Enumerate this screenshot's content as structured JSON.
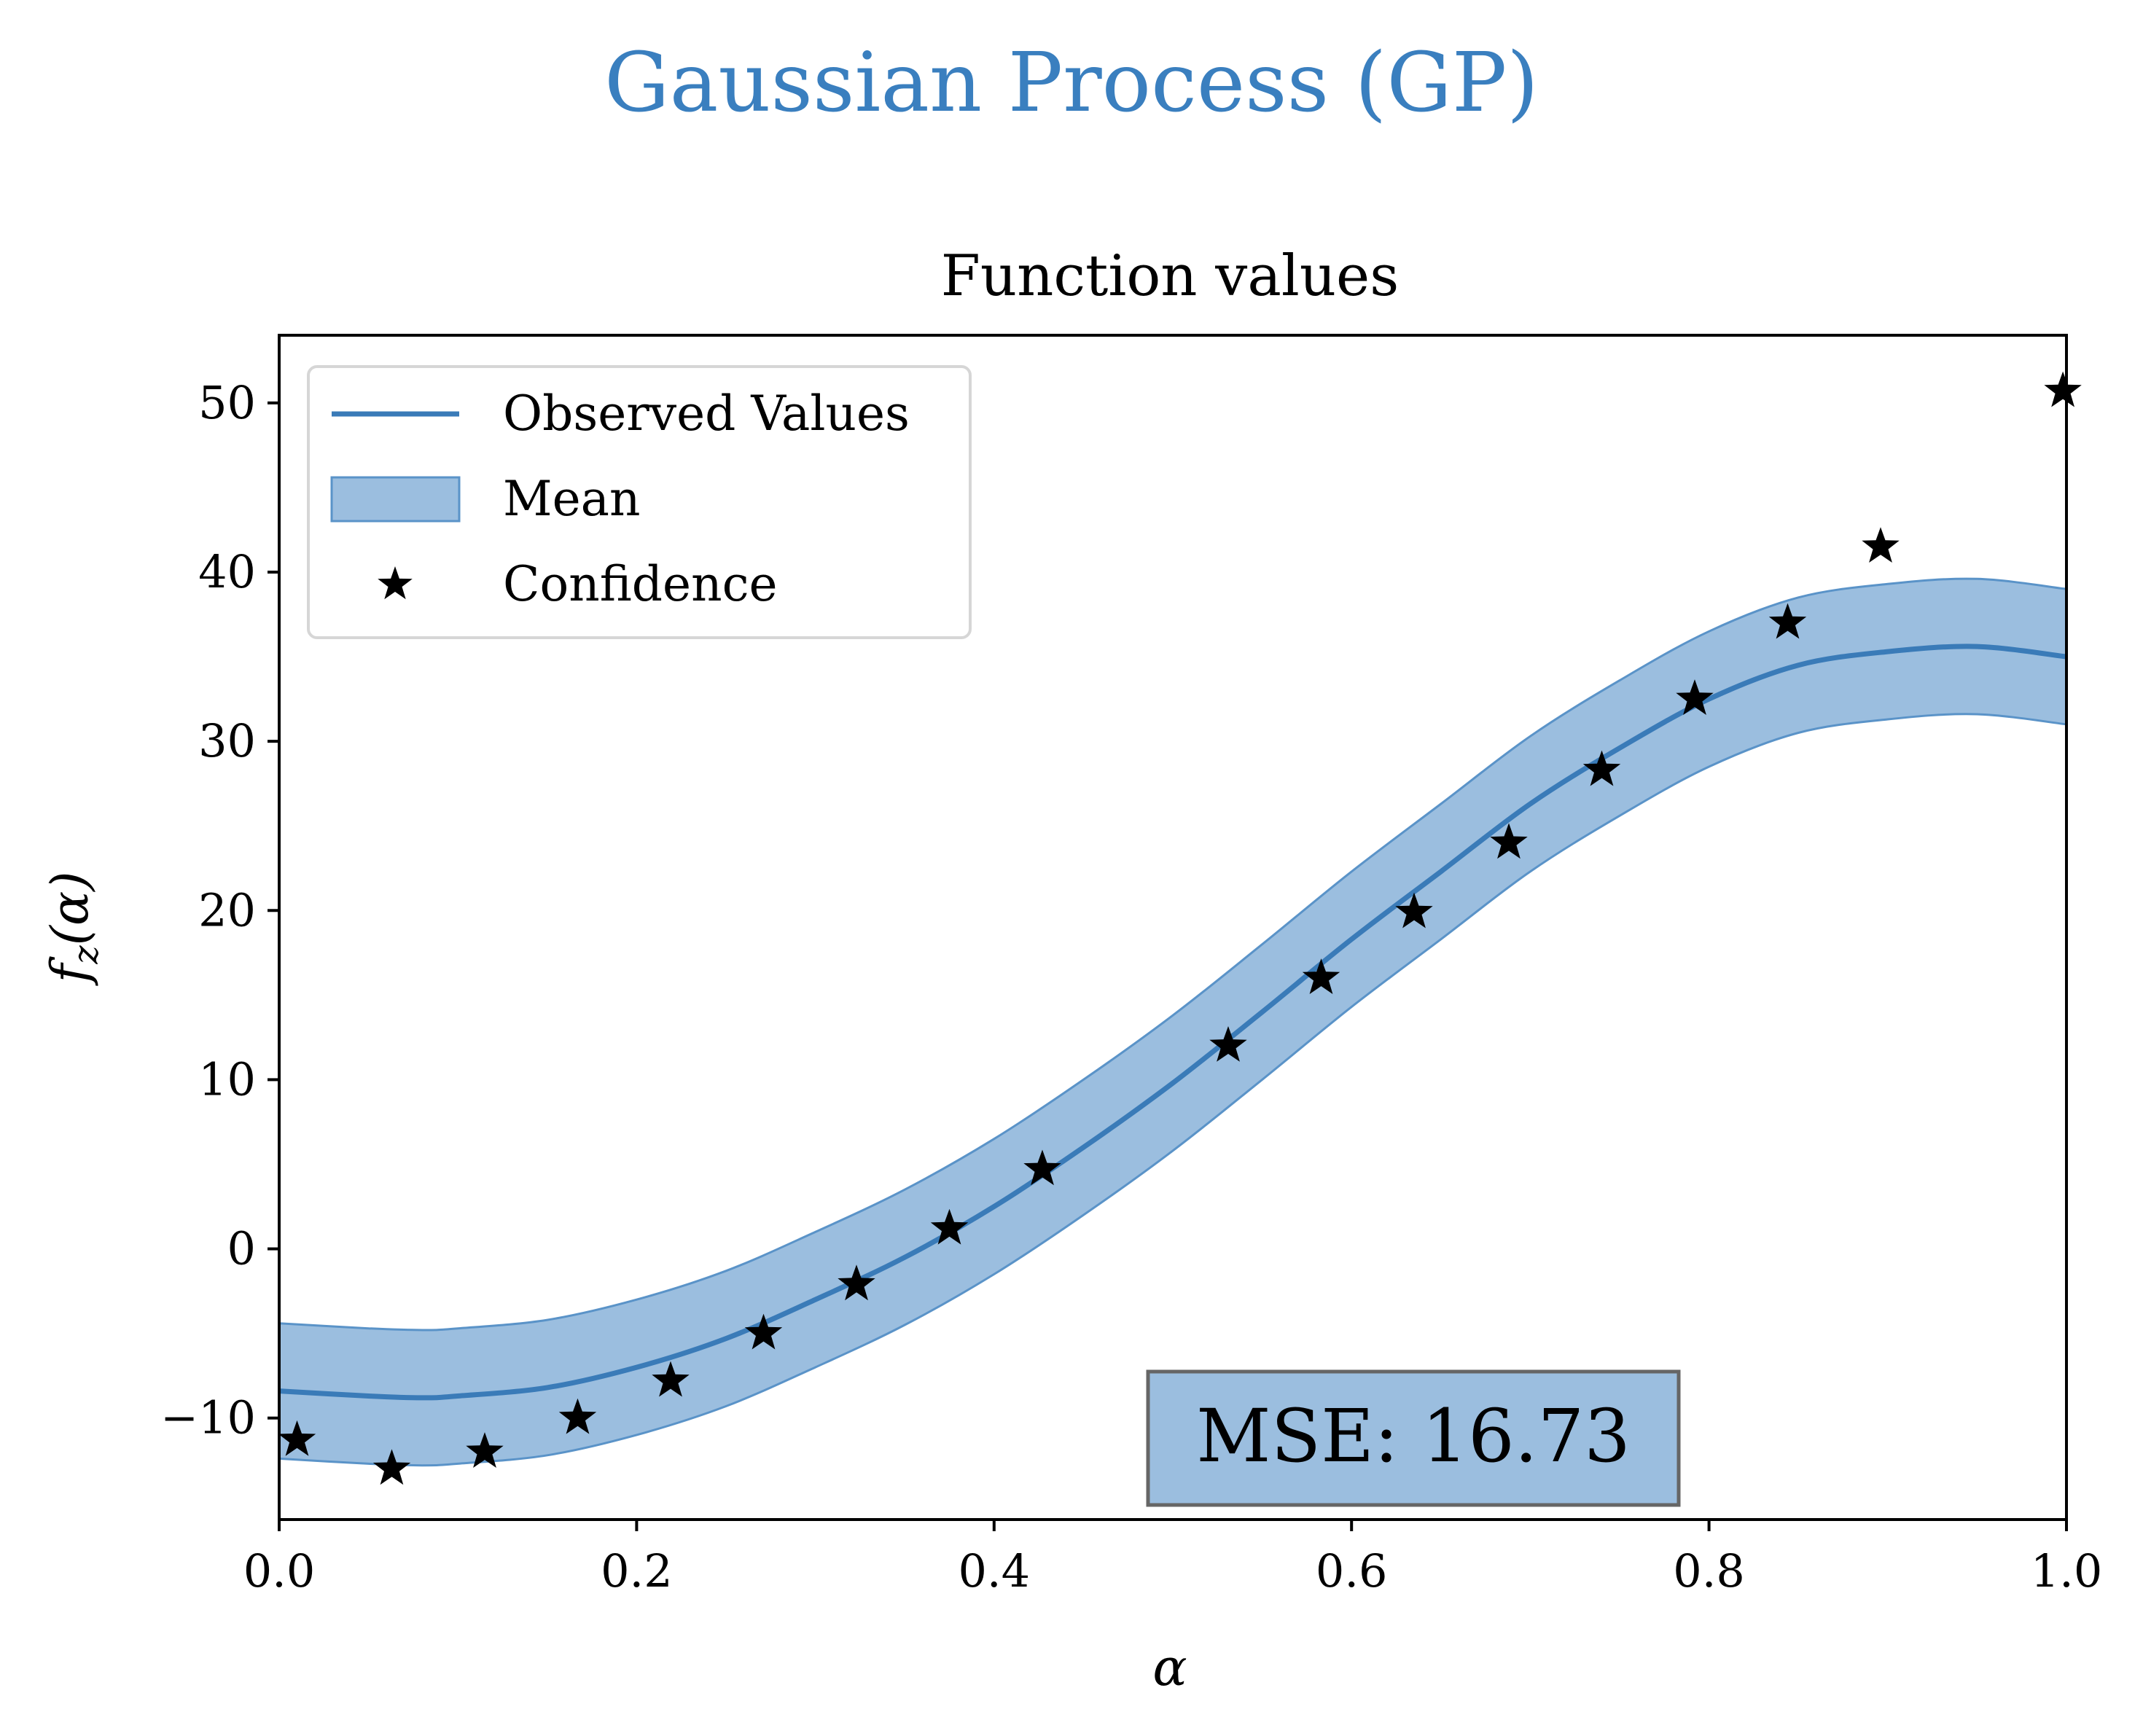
{
  "suptitle": "Gaussian Process (GP)",
  "colors": {
    "suptitle": "#3a7fbf",
    "mean_line": "#3a7bb8",
    "band_fill": "#9bbedf",
    "band_edge": "#5a93c8",
    "points": "#000000",
    "mse_box_fill": "#9bbedf",
    "mse_box_edge": "#666666"
  },
  "mse_label": "MSE: 16.73",
  "chart_data": {
    "type": "line",
    "title": "Function values",
    "xlabel": "α",
    "ylabel": "f_z(α)",
    "xlim": [
      0.0,
      1.0
    ],
    "ylim": [
      -16.0,
      54.0
    ],
    "xticks": [
      0.0,
      0.2,
      0.4,
      0.6,
      0.8,
      1.0
    ],
    "xtick_labels": [
      "0.0",
      "0.2",
      "0.4",
      "0.6",
      "0.8",
      "1.0"
    ],
    "yticks": [
      -10,
      0,
      10,
      20,
      30,
      40,
      50
    ],
    "ytick_labels": [
      "−10",
      "0",
      "10",
      "20",
      "30",
      "40",
      "50"
    ],
    "grid": false,
    "legend": {
      "placement": "top-left",
      "entries": [
        {
          "label": "Observed Values",
          "kind": "line"
        },
        {
          "label": "Mean",
          "kind": "band"
        },
        {
          "label": "Confidence",
          "kind": "star"
        }
      ]
    },
    "series": [
      {
        "name": "Observed Values",
        "kind": "line",
        "x": [
          0.0,
          0.05,
          0.08,
          0.1,
          0.15,
          0.2,
          0.25,
          0.3,
          0.35,
          0.4,
          0.45,
          0.5,
          0.55,
          0.6,
          0.65,
          0.7,
          0.75,
          0.8,
          0.85,
          0.9,
          0.95,
          1.0
        ],
        "y": [
          -8.4,
          -8.7,
          -8.8,
          -8.7,
          -8.2,
          -7.0,
          -5.3,
          -3.0,
          -0.5,
          2.5,
          6.0,
          9.8,
          14.0,
          18.3,
          22.3,
          26.3,
          29.6,
          32.5,
          34.5,
          35.3,
          35.6,
          35.0
        ]
      },
      {
        "name": "Mean",
        "kind": "band",
        "x": [
          0.0,
          0.05,
          0.08,
          0.1,
          0.15,
          0.2,
          0.25,
          0.3,
          0.35,
          0.4,
          0.45,
          0.5,
          0.55,
          0.6,
          0.65,
          0.7,
          0.75,
          0.8,
          0.85,
          0.9,
          0.95,
          1.0
        ],
        "lower": [
          -12.4,
          -12.7,
          -12.8,
          -12.7,
          -12.2,
          -11.0,
          -9.3,
          -7.0,
          -4.5,
          -1.5,
          2.0,
          5.8,
          10.0,
          14.3,
          18.3,
          22.3,
          25.6,
          28.5,
          30.5,
          31.3,
          31.6,
          31.0
        ],
        "upper": [
          -4.4,
          -4.7,
          -4.8,
          -4.7,
          -4.2,
          -3.0,
          -1.3,
          1.0,
          3.5,
          6.5,
          10.0,
          13.8,
          18.0,
          22.3,
          26.3,
          30.3,
          33.6,
          36.5,
          38.5,
          39.3,
          39.6,
          39.0
        ]
      },
      {
        "name": "Confidence",
        "kind": "scatter",
        "marker": "star",
        "x": [
          0.01,
          0.063,
          0.115,
          0.167,
          0.219,
          0.271,
          0.323,
          0.375,
          0.427,
          0.531,
          0.583,
          0.635,
          0.688,
          0.74,
          0.792,
          0.844,
          0.896,
          0.998
        ],
        "y": [
          -11.3,
          -13.0,
          -12.0,
          -10.0,
          -7.8,
          -5.0,
          -2.1,
          1.2,
          4.7,
          12.0,
          16.0,
          19.9,
          24.0,
          28.3,
          32.5,
          37.0,
          41.5,
          50.7
        ]
      }
    ]
  }
}
